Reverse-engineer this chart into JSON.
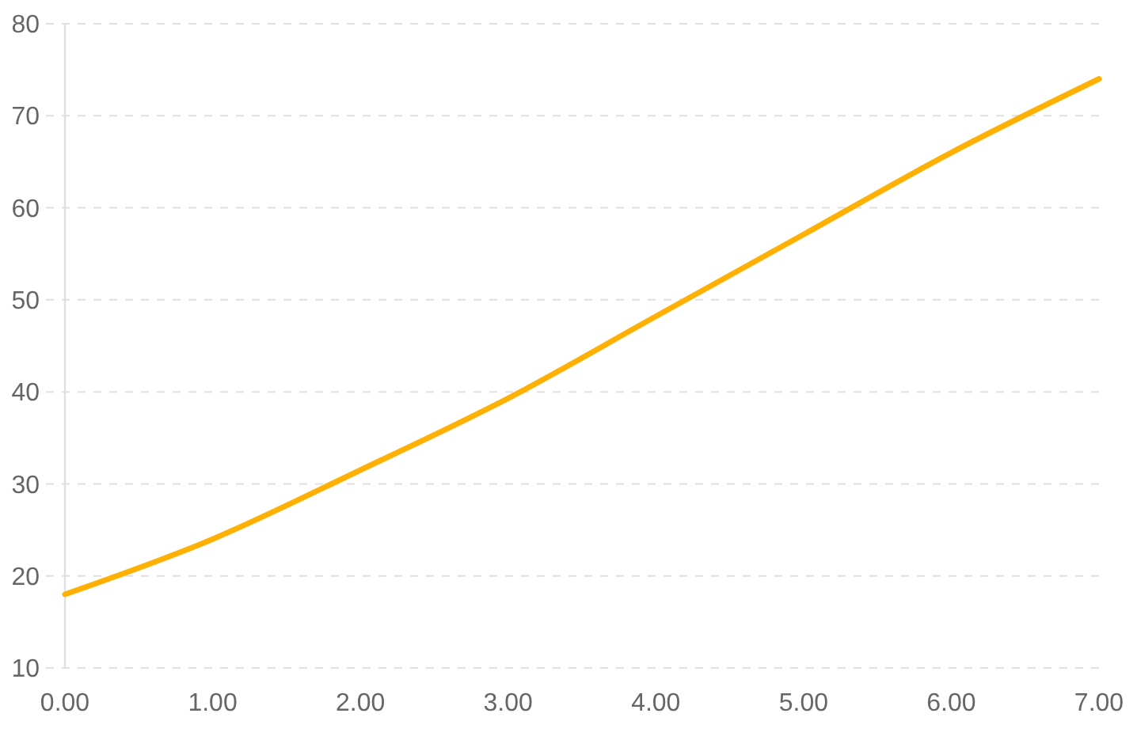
{
  "chart_data": {
    "type": "line",
    "x": [
      0,
      1,
      2,
      3,
      4,
      5,
      6,
      7
    ],
    "series": [
      {
        "color": "#ffb000",
        "values": [
          18,
          24,
          31.5,
          39.3,
          48.2,
          57.1,
          66,
          74
        ]
      }
    ],
    "xlim": [
      0,
      7
    ],
    "xticks": [
      {
        "value": 0,
        "label": "0.00"
      },
      {
        "value": 1,
        "label": "1.00"
      },
      {
        "value": 2,
        "label": "2.00"
      },
      {
        "value": 3,
        "label": "3.00"
      },
      {
        "value": 4,
        "label": "4.00"
      },
      {
        "value": 5,
        "label": "5.00"
      },
      {
        "value": 6,
        "label": "6.00"
      },
      {
        "value": 7,
        "label": "7.00"
      }
    ],
    "ylim": [
      10,
      80
    ],
    "yticks": [
      10,
      20,
      30,
      40,
      50,
      60,
      70,
      80
    ],
    "grid": "y",
    "marker": "none",
    "line_style": "solid"
  }
}
